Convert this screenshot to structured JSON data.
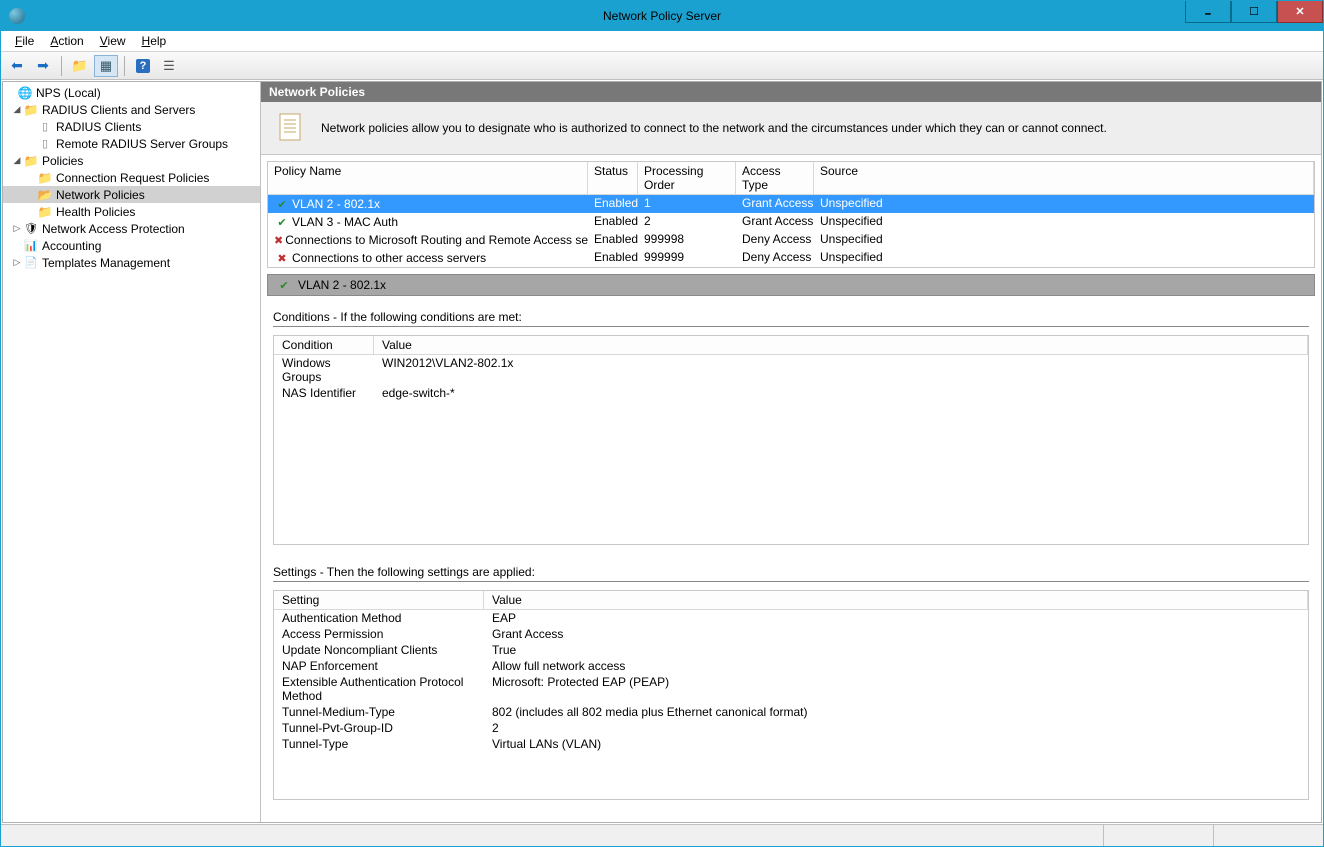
{
  "window": {
    "title": "Network Policy Server"
  },
  "menu": {
    "file": "File",
    "action": "Action",
    "view": "View",
    "help": "Help"
  },
  "tree": {
    "root": "NPS (Local)",
    "radius_parent": "RADIUS Clients and Servers",
    "radius_clients": "RADIUS Clients",
    "remote_groups": "Remote RADIUS Server Groups",
    "policies": "Policies",
    "conn_req": "Connection Request Policies",
    "net_pol": "Network Policies",
    "health_pol": "Health Policies",
    "nap": "Network Access Protection",
    "accounting": "Accounting",
    "templates": "Templates Management"
  },
  "panel": {
    "title": "Network Policies",
    "info": "Network policies allow you to designate who is authorized to connect to the network and the circumstances under which they can or cannot connect."
  },
  "policy_columns": {
    "name": "Policy Name",
    "status": "Status",
    "order": "Processing Order",
    "access": "Access Type",
    "source": "Source"
  },
  "policies": [
    {
      "name": "VLAN 2 - 802.1x",
      "status": "Enabled",
      "order": "1",
      "access": "Grant Access",
      "source": "Unspecified",
      "ok": true,
      "selected": true
    },
    {
      "name": "VLAN 3 - MAC Auth",
      "status": "Enabled",
      "order": "2",
      "access": "Grant Access",
      "source": "Unspecified",
      "ok": true,
      "selected": false
    },
    {
      "name": "Connections to Microsoft Routing and Remote Access server",
      "status": "Enabled",
      "order": "999998",
      "access": "Deny Access",
      "source": "Unspecified",
      "ok": false,
      "selected": false
    },
    {
      "name": "Connections to other access servers",
      "status": "Enabled",
      "order": "999999",
      "access": "Deny Access",
      "source": "Unspecified",
      "ok": false,
      "selected": false
    }
  ],
  "detail": {
    "title": "VLAN 2 - 802.1x",
    "conditions_title": "Conditions - If the following conditions are met:",
    "cond_col1": "Condition",
    "cond_col2": "Value",
    "conditions": [
      {
        "c": "Windows Groups",
        "v": "WIN2012\\VLAN2-802.1x"
      },
      {
        "c": "NAS Identifier",
        "v": "edge-switch-*"
      }
    ],
    "settings_title": "Settings - Then the following settings are applied:",
    "set_col1": "Setting",
    "set_col2": "Value",
    "settings": [
      {
        "s": "Authentication Method",
        "v": "EAP"
      },
      {
        "s": "Access Permission",
        "v": "Grant Access"
      },
      {
        "s": "Update Noncompliant Clients",
        "v": "True"
      },
      {
        "s": "NAP Enforcement",
        "v": "Allow full network access"
      },
      {
        "s": "Extensible Authentication Protocol Method",
        "v": "Microsoft: Protected EAP (PEAP)"
      },
      {
        "s": "Tunnel-Medium-Type",
        "v": "802 (includes all 802 media plus Ethernet canonical format)"
      },
      {
        "s": "Tunnel-Pvt-Group-ID",
        "v": "2"
      },
      {
        "s": "Tunnel-Type",
        "v": "Virtual LANs (VLAN)"
      }
    ]
  }
}
